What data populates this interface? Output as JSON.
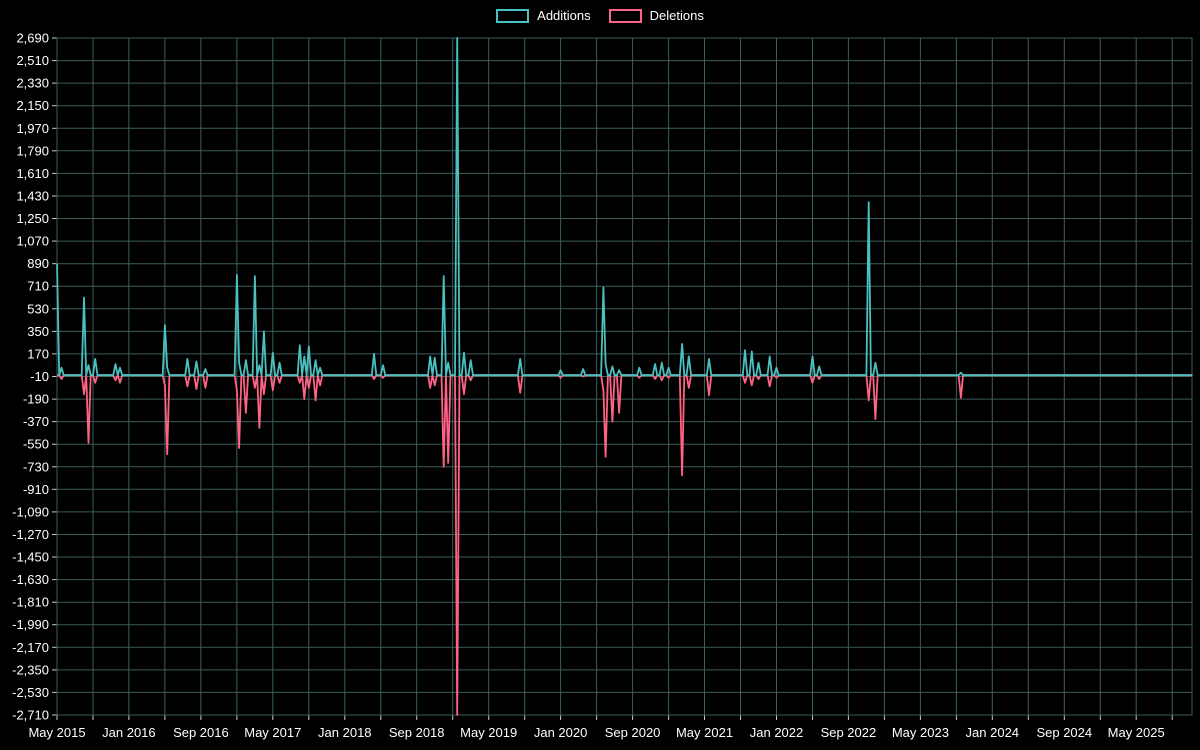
{
  "page": {
    "background": "#000000",
    "text_color": "#ffffff",
    "grid_color": "#3a5d5d"
  },
  "chart_data": {
    "type": "line",
    "title": "",
    "xlabel": "",
    "ylabel": "",
    "legend_position": "top-center",
    "grid": true,
    "series": [
      {
        "name": "Additions",
        "color": "#4bc0c0"
      },
      {
        "name": "Deletions",
        "color": "#ff6384"
      }
    ],
    "y_axis": {
      "min": -2710,
      "max": 2690,
      "step": 180,
      "tick_labels_sample": [
        "2,690",
        "890",
        "-10",
        "-730",
        "-2,710"
      ]
    },
    "x_axis": {
      "labels": [
        "May 2015",
        "Jan 2016",
        "Sep 2016",
        "May 2017",
        "Jan 2018",
        "Sep 2018",
        "May 2019",
        "Jan 2020",
        "Sep 2020",
        "May 2021",
        "Jan 2022",
        "Sep 2022",
        "May 2023",
        "Jan 2024",
        "Sep 2024",
        "May 2025"
      ],
      "label_interval_months": 8,
      "gridline_interval_months": 4,
      "total_months": 126.2,
      "start": "May 2015"
    },
    "baseline": 0,
    "points_format": [
      "months_since_may_2015",
      "additions",
      "deletions"
    ],
    "points": [
      [
        0,
        890,
        0
      ],
      [
        0.5,
        60,
        -30
      ],
      [
        3.0,
        620,
        -150
      ],
      [
        3.5,
        80,
        -540
      ],
      [
        4.2,
        130,
        -60
      ],
      [
        6.4,
        90,
        -40
      ],
      [
        7.0,
        60,
        -60
      ],
      [
        11.9,
        400,
        -80
      ],
      [
        12.2,
        60,
        -630
      ],
      [
        14.6,
        130,
        -90
      ],
      [
        15.6,
        110,
        -110
      ],
      [
        16.4,
        50,
        -100
      ],
      [
        20.0,
        800,
        -120
      ],
      [
        20.3,
        100,
        -580
      ],
      [
        21.1,
        120,
        -300
      ],
      [
        22.1,
        790,
        -100
      ],
      [
        22.4,
        80,
        -420
      ],
      [
        23.1,
        350,
        -150
      ],
      [
        23.9,
        180,
        -120
      ],
      [
        24.8,
        100,
        -60
      ],
      [
        27.0,
        240,
        -60
      ],
      [
        27.5,
        150,
        -190
      ],
      [
        28.1,
        230,
        -100
      ],
      [
        28.7,
        120,
        -200
      ],
      [
        29.3,
        60,
        -80
      ],
      [
        35.3,
        170,
        -30
      ],
      [
        36.2,
        80,
        -20
      ],
      [
        41.4,
        150,
        -100
      ],
      [
        42.1,
        140,
        -80
      ],
      [
        42.9,
        790,
        -730
      ],
      [
        43.4,
        100,
        -700
      ],
      [
        44.6,
        2690,
        -2710
      ],
      [
        45.3,
        180,
        -150
      ],
      [
        45.9,
        120,
        -40
      ],
      [
        51.4,
        130,
        -140
      ],
      [
        55.9,
        40,
        -20
      ],
      [
        58.4,
        50,
        -10
      ],
      [
        60.7,
        700,
        -120
      ],
      [
        61.0,
        90,
        -650
      ],
      [
        61.8,
        70,
        -370
      ],
      [
        62.4,
        40,
        -300
      ],
      [
        64.8,
        60,
        -20
      ],
      [
        66.4,
        90,
        -30
      ],
      [
        67.2,
        100,
        -40
      ],
      [
        68.1,
        60,
        -20
      ],
      [
        69.6,
        250,
        -800
      ],
      [
        70.3,
        150,
        -100
      ],
      [
        72.6,
        130,
        -160
      ],
      [
        76.4,
        200,
        -60
      ],
      [
        77.2,
        190,
        -80
      ],
      [
        77.9,
        100,
        -30
      ],
      [
        79.2,
        150,
        -90
      ],
      [
        80.1,
        60,
        -20
      ],
      [
        83.9,
        150,
        -60
      ],
      [
        84.8,
        70,
        -30
      ],
      [
        90.3,
        1380,
        -200
      ],
      [
        90.9,
        100,
        -350
      ],
      [
        100.6,
        20,
        -180
      ]
    ]
  }
}
